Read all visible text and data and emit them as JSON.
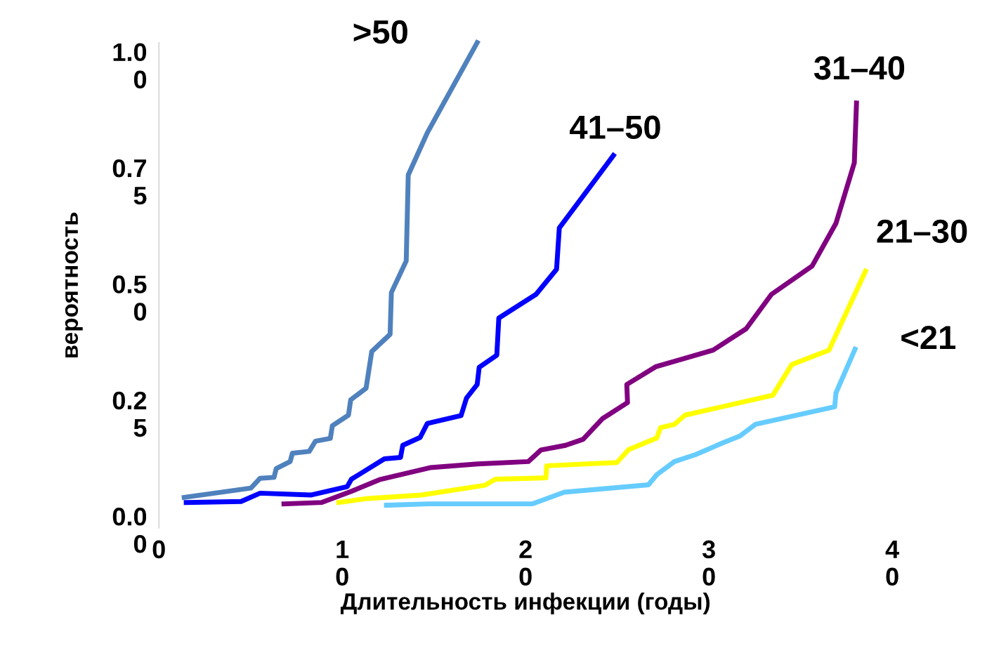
{
  "chart_data": {
    "type": "line",
    "xlabel": "Длительность инфекции (годы)",
    "ylabel": "вероятность",
    "xlim": [
      0,
      40
    ],
    "ylim": [
      0,
      1.045
    ],
    "xticks": [
      0,
      10,
      20,
      30,
      40
    ],
    "yticks": [
      {
        "value": 0,
        "label": "0.00"
      },
      {
        "value": 0.25,
        "label": "0.25"
      },
      {
        "value": 0.5,
        "label": "0.50"
      },
      {
        "value": 0.75,
        "label": "0.75"
      },
      {
        "value": 1.0,
        "label": "1.00"
      }
    ],
    "grid": false,
    "legend": false,
    "marker": "none",
    "line_style": "solid",
    "series": [
      {
        "name": ">50",
        "color": "#4f81bd",
        "x": [
          1.38,
          5.02,
          5.52,
          6.28,
          6.4,
          7.16,
          7.28,
          8.2,
          8.54,
          9.35,
          9.46,
          10.34,
          10.46,
          11.3,
          11.61,
          12.61,
          12.68,
          13.49,
          13.6,
          14.64,
          17.36
        ],
        "values": [
          0.066,
          0.086,
          0.107,
          0.109,
          0.128,
          0.143,
          0.161,
          0.165,
          0.187,
          0.193,
          0.22,
          0.243,
          0.276,
          0.301,
          0.38,
          0.417,
          0.507,
          0.575,
          0.76,
          0.851,
          1.045
        ]
      },
      {
        "name": "41–50",
        "color": "#0000ff",
        "x": [
          1.49,
          4.48,
          5.52,
          8.28,
          10.27,
          10.5,
          12.3,
          13.18,
          13.3,
          14.25,
          14.64,
          16.48,
          16.78,
          17.36,
          17.47,
          18.43,
          18.54,
          20.57,
          21.69,
          21.84,
          24.79
        ],
        "values": [
          0.055,
          0.057,
          0.075,
          0.071,
          0.089,
          0.105,
          0.149,
          0.152,
          0.178,
          0.195,
          0.225,
          0.242,
          0.28,
          0.309,
          0.346,
          0.372,
          0.452,
          0.503,
          0.557,
          0.646,
          0.802
        ]
      },
      {
        "name": "31–40",
        "color": "#800080",
        "x": [
          6.82,
          8.89,
          10.5,
          12.03,
          14.79,
          17.39,
          20.15,
          20.84,
          22.18,
          23.14,
          24.18,
          25.56,
          25.52,
          27.09,
          30.23,
          32.03,
          33.41,
          35.63,
          36.93,
          37.93,
          38.05
        ],
        "values": [
          0.052,
          0.055,
          0.079,
          0.104,
          0.13,
          0.138,
          0.143,
          0.168,
          0.178,
          0.191,
          0.235,
          0.27,
          0.309,
          0.347,
          0.383,
          0.429,
          0.503,
          0.564,
          0.656,
          0.786,
          0.915
        ]
      },
      {
        "name": "21–30",
        "color": "#ffff00",
        "x": [
          9.81,
          11.26,
          14.33,
          17.78,
          18.35,
          21.11,
          21.15,
          24.98,
          25.63,
          27.16,
          27.36,
          28.12,
          28.7,
          33.49,
          34.52,
          36.55,
          38.54
        ],
        "values": [
          0.055,
          0.063,
          0.071,
          0.092,
          0.105,
          0.108,
          0.134,
          0.141,
          0.169,
          0.194,
          0.216,
          0.223,
          0.243,
          0.286,
          0.352,
          0.383,
          0.553
        ]
      },
      {
        "name": "<21",
        "color": "#66ccff",
        "x": [
          12.41,
          14.71,
          20.38,
          22.11,
          26.7,
          27.16,
          28.12,
          29.27,
          30.8,
          31.69,
          32.53,
          36.86,
          36.93,
          37.97
        ],
        "values": [
          0.049,
          0.052,
          0.052,
          0.077,
          0.093,
          0.115,
          0.143,
          0.158,
          0.184,
          0.198,
          0.223,
          0.261,
          0.291,
          0.385
        ]
      }
    ]
  }
}
